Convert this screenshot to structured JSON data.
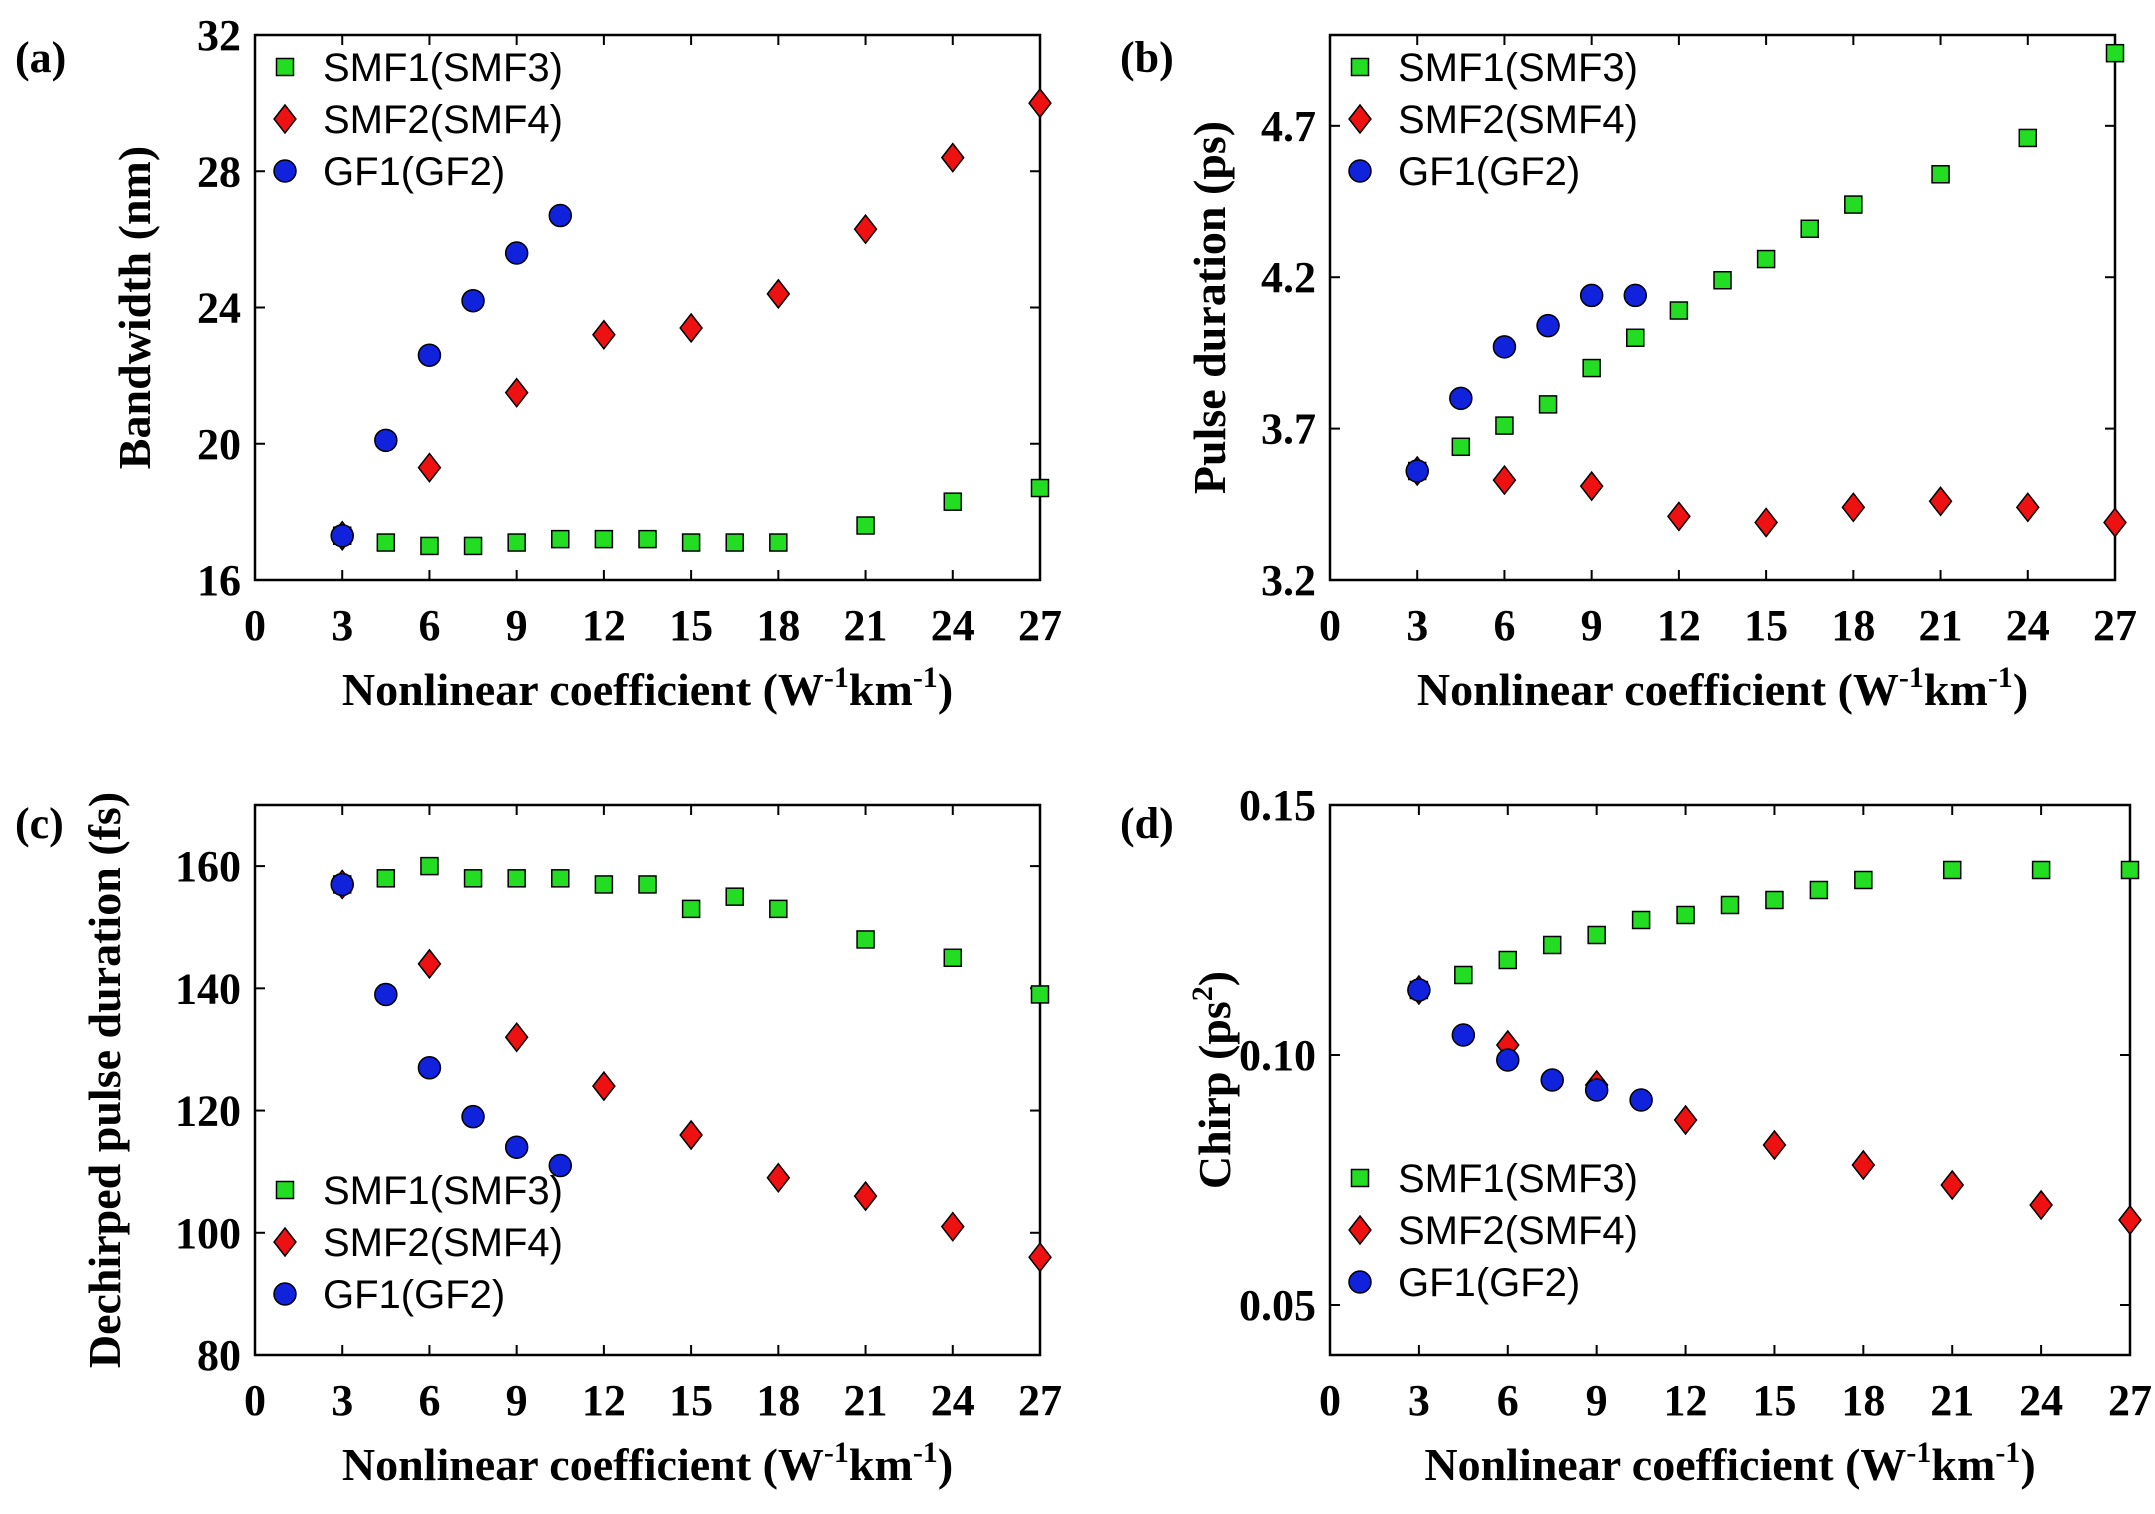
{
  "chart_data": [
    {
      "type": "scatter",
      "panel_label": "(a)",
      "xlabel": "Nonlinear coefficient (W",
      "xlabel_sup1": "-1",
      "xlabel_mid": "km",
      "xlabel_sup2": "-1",
      "xlabel_end": ")",
      "ylabel": "Bandwidth (nm)",
      "ylabel_sup": "",
      "ylabel_end": "",
      "xlim": [
        0,
        27
      ],
      "ylim": [
        16,
        32
      ],
      "xticks": [
        0,
        3,
        6,
        9,
        12,
        15,
        18,
        21,
        24,
        27
      ],
      "xtick_labels": [
        "0",
        "3",
        "6",
        "9",
        "12",
        "15",
        "18",
        "21",
        "24",
        "27"
      ],
      "yticks": [
        16,
        20,
        24,
        28,
        32
      ],
      "ytick_labels": [
        "16",
        "20",
        "24",
        "28",
        "32"
      ],
      "legend_position": "top-left",
      "series": [
        {
          "name": "SMF1(SMF3)",
          "marker": "square",
          "color": "#22dd22",
          "x": [
            3,
            4.5,
            6,
            7.5,
            9,
            10.5,
            12,
            13.5,
            15,
            16.5,
            18,
            21,
            24,
            27
          ],
          "y": [
            17.3,
            17.1,
            17.0,
            17.0,
            17.1,
            17.2,
            17.2,
            17.2,
            17.1,
            17.1,
            17.1,
            17.6,
            18.3,
            18.7
          ]
        },
        {
          "name": "SMF2(SMF4)",
          "marker": "diamond",
          "color": "#ee1111",
          "x": [
            3,
            6,
            9,
            12,
            15,
            18,
            21,
            24,
            27
          ],
          "y": [
            17.3,
            19.3,
            21.5,
            23.2,
            23.4,
            24.4,
            26.3,
            28.4,
            30.0
          ]
        },
        {
          "name": "GF1(GF2)",
          "marker": "circle",
          "color": "#1122dd",
          "x": [
            3,
            4.5,
            6,
            7.5,
            9,
            10.5
          ],
          "y": [
            17.3,
            20.1,
            22.6,
            24.2,
            25.6,
            26.7
          ]
        }
      ]
    },
    {
      "type": "scatter",
      "panel_label": "(b)",
      "xlabel": "Nonlinear coefficient (W",
      "xlabel_sup1": "-1",
      "xlabel_mid": "km",
      "xlabel_sup2": "-1",
      "xlabel_end": ")",
      "ylabel": "Pulse duration (ps)",
      "ylabel_sup": "",
      "ylabel_end": "",
      "xlim": [
        0,
        27
      ],
      "ylim": [
        3.2,
        5.0
      ],
      "xticks": [
        0,
        3,
        6,
        9,
        12,
        15,
        18,
        21,
        24,
        27
      ],
      "xtick_labels": [
        "0",
        "3",
        "6",
        "9",
        "12",
        "15",
        "18",
        "21",
        "24",
        "27"
      ],
      "yticks": [
        3.2,
        3.7,
        4.2,
        4.7
      ],
      "ytick_labels": [
        "3.2",
        "3.7",
        "4.2",
        "4.7"
      ],
      "legend_position": "top-left",
      "series": [
        {
          "name": "SMF1(SMF3)",
          "marker": "square",
          "color": "#22dd22",
          "x": [
            3,
            4.5,
            6,
            7.5,
            9,
            10.5,
            12,
            13.5,
            15,
            16.5,
            18,
            21,
            24,
            27
          ],
          "y": [
            3.56,
            3.64,
            3.71,
            3.78,
            3.9,
            4.0,
            4.09,
            4.19,
            4.26,
            4.36,
            4.44,
            4.54,
            4.66,
            4.94
          ]
        },
        {
          "name": "SMF2(SMF4)",
          "marker": "diamond",
          "color": "#ee1111",
          "x": [
            3,
            6,
            9,
            12,
            15,
            18,
            21,
            24,
            27
          ],
          "y": [
            3.56,
            3.53,
            3.51,
            3.41,
            3.39,
            3.44,
            3.46,
            3.44,
            3.39
          ]
        },
        {
          "name": "GF1(GF2)",
          "marker": "circle",
          "color": "#1122dd",
          "x": [
            3,
            4.5,
            6,
            7.5,
            9,
            10.5
          ],
          "y": [
            3.56,
            3.8,
            3.97,
            4.04,
            4.14,
            4.14
          ]
        }
      ]
    },
    {
      "type": "scatter",
      "panel_label": "(c)",
      "xlabel": "Nonlinear coefficient (W",
      "xlabel_sup1": "-1",
      "xlabel_mid": "km",
      "xlabel_sup2": "-1",
      "xlabel_end": ")",
      "ylabel": "Dechirped pulse duration (fs)",
      "ylabel_sup": "",
      "ylabel_end": "",
      "xlim": [
        0,
        27
      ],
      "ylim": [
        80,
        170
      ],
      "xticks": [
        0,
        3,
        6,
        9,
        12,
        15,
        18,
        21,
        24,
        27
      ],
      "xtick_labels": [
        "0",
        "3",
        "6",
        "9",
        "12",
        "15",
        "18",
        "21",
        "24",
        "27"
      ],
      "yticks": [
        80,
        100,
        120,
        140,
        160
      ],
      "ytick_labels": [
        "80",
        "100",
        "120",
        "140",
        "160"
      ],
      "legend_position": "bottom-left",
      "series": [
        {
          "name": "SMF1(SMF3)",
          "marker": "square",
          "color": "#22dd22",
          "x": [
            3,
            4.5,
            6,
            7.5,
            9,
            10.5,
            12,
            13.5,
            15,
            16.5,
            18,
            21,
            24,
            27
          ],
          "y": [
            157,
            158,
            160,
            158,
            158,
            158,
            157,
            157,
            153,
            155,
            153,
            148,
            145,
            139
          ]
        },
        {
          "name": "SMF2(SMF4)",
          "marker": "diamond",
          "color": "#ee1111",
          "x": [
            3,
            6,
            9,
            12,
            15,
            18,
            21,
            24,
            27
          ],
          "y": [
            157,
            144,
            132,
            124,
            116,
            109,
            106,
            101,
            96
          ]
        },
        {
          "name": "GF1(GF2)",
          "marker": "circle",
          "color": "#1122dd",
          "x": [
            3,
            4.5,
            6,
            7.5,
            9,
            10.5
          ],
          "y": [
            157,
            139,
            127,
            119,
            114,
            111
          ]
        }
      ]
    },
    {
      "type": "scatter",
      "panel_label": "(d)",
      "xlabel": "Nonlinear coefficient (W",
      "xlabel_sup1": "-1",
      "xlabel_mid": "km",
      "xlabel_sup2": "-1",
      "xlabel_end": ")",
      "ylabel": "Chirp (ps",
      "ylabel_sup": "2",
      "ylabel_end": ")",
      "xlim": [
        0,
        27
      ],
      "ylim": [
        0.04,
        0.15
      ],
      "xticks": [
        0,
        3,
        6,
        9,
        12,
        15,
        18,
        21,
        24,
        27
      ],
      "xtick_labels": [
        "0",
        "3",
        "6",
        "9",
        "12",
        "15",
        "18",
        "21",
        "24",
        "27"
      ],
      "yticks": [
        0.05,
        0.1,
        0.15
      ],
      "ytick_labels": [
        "0.05",
        "0.10",
        "0.15"
      ],
      "legend_position": "bottom-left",
      "series": [
        {
          "name": "SMF1(SMF3)",
          "marker": "square",
          "color": "#22dd22",
          "x": [
            3,
            4.5,
            6,
            7.5,
            9,
            10.5,
            12,
            13.5,
            15,
            16.5,
            18,
            21,
            24,
            27
          ],
          "y": [
            0.113,
            0.116,
            0.119,
            0.122,
            0.124,
            0.127,
            0.128,
            0.13,
            0.131,
            0.133,
            0.135,
            0.137,
            0.137,
            0.137
          ]
        },
        {
          "name": "SMF2(SMF4)",
          "marker": "diamond",
          "color": "#ee1111",
          "x": [
            3,
            6,
            9,
            12,
            15,
            18,
            21,
            24,
            27
          ],
          "y": [
            0.113,
            0.102,
            0.094,
            0.087,
            0.082,
            0.078,
            0.074,
            0.07,
            0.067
          ]
        },
        {
          "name": "GF1(GF2)",
          "marker": "circle",
          "color": "#1122dd",
          "x": [
            3,
            4.5,
            6,
            7.5,
            9,
            10.5
          ],
          "y": [
            0.113,
            0.104,
            0.099,
            0.095,
            0.093,
            0.091
          ]
        }
      ]
    }
  ]
}
